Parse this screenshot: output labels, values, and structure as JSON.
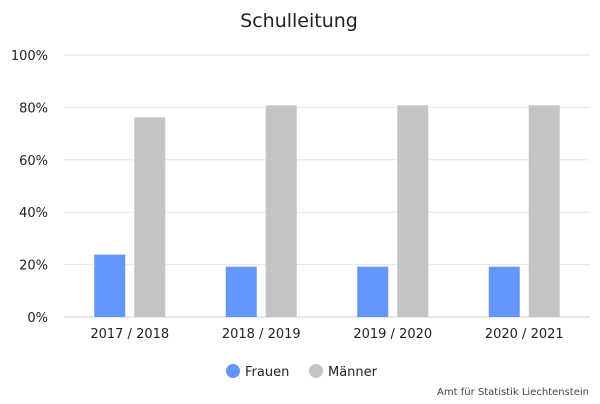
{
  "chart_data": {
    "type": "bar",
    "title": "Schulleitung",
    "categories": [
      "2017 / 2018",
      "2018 / 2019",
      "2019 / 2020",
      "2020 / 2021"
    ],
    "series": [
      {
        "name": "Frauen",
        "values": [
          23.8,
          19.2,
          19.2,
          19.2
        ],
        "color": "#6495fb"
      },
      {
        "name": "Männer",
        "values": [
          76.2,
          80.8,
          80.8,
          80.8
        ],
        "color": "#c4c4c4"
      }
    ],
    "y_ticks": [
      "0%",
      "20%",
      "40%",
      "60%",
      "80%",
      "100%"
    ],
    "ylim": [
      0,
      100
    ],
    "grid": true,
    "legend_position": "bottom",
    "credit": "Amt für Statistik Liechtenstein"
  }
}
